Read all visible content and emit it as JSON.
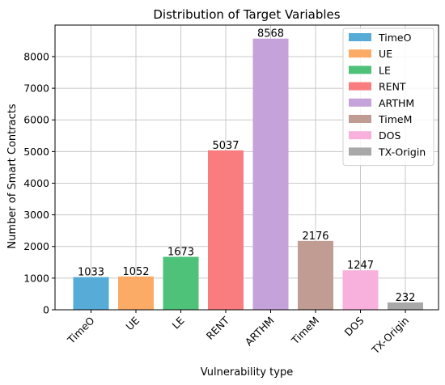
{
  "chart_data": {
    "type": "bar",
    "title": "Distribution of Target Variables",
    "xlabel": "Vulnerability type",
    "ylabel": "Number of Smart Contracts",
    "categories": [
      "TimeO",
      "UE",
      "LE",
      "RENT",
      "ARTHM",
      "TimeM",
      "DOS",
      "TX-Origin"
    ],
    "values": [
      1033,
      1052,
      1673,
      5037,
      8568,
      2176,
      1247,
      232
    ],
    "colors": [
      "#56acd6",
      "#fbab66",
      "#4fc27a",
      "#f97c7f",
      "#c6a2da",
      "#c19c92",
      "#f8b1dc",
      "#a8a8a8"
    ],
    "ylim": [
      0,
      8996
    ],
    "yticks": [
      0,
      1000,
      2000,
      3000,
      4000,
      5000,
      6000,
      7000,
      8000
    ],
    "grid": true,
    "legend": {
      "placement": "top-right",
      "entries": [
        "TimeO",
        "UE",
        "LE",
        "RENT",
        "ARTHM",
        "TimeM",
        "DOS",
        "TX-Origin"
      ]
    }
  }
}
